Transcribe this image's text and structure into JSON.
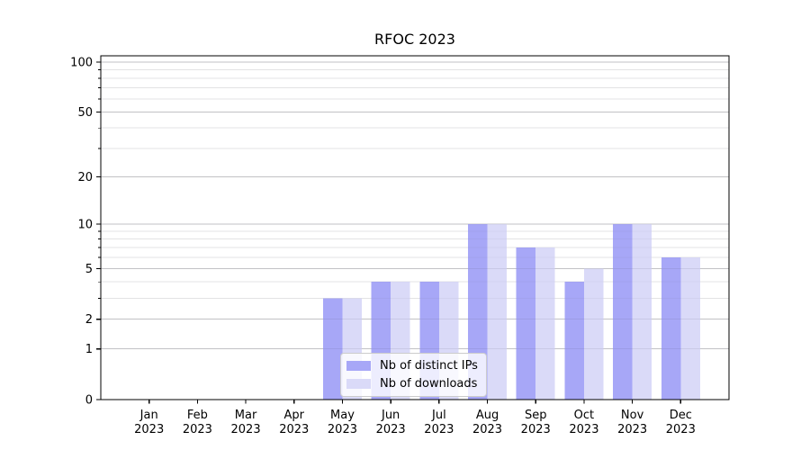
{
  "chart_data": {
    "type": "bar",
    "title": "RFOC 2023",
    "categories": [
      "Jan 2023",
      "Feb 2023",
      "Mar 2023",
      "Apr 2023",
      "May 2023",
      "Jun 2023",
      "Jul 2023",
      "Aug 2023",
      "Sep 2023",
      "Oct 2023",
      "Nov 2023",
      "Dec 2023"
    ],
    "series": [
      {
        "name": "Nb of distinct IPs",
        "color": "#a7a7f7",
        "values": [
          0,
          0,
          0,
          0,
          3,
          4,
          4,
          10,
          7,
          4,
          10,
          6
        ]
      },
      {
        "name": "Nb of downloads",
        "color": "#dadaf8",
        "values": [
          0,
          0,
          0,
          0,
          3,
          4,
          4,
          10,
          7,
          5,
          10,
          6
        ]
      }
    ],
    "xlabel": "",
    "ylabel": "",
    "yscale": "log1p",
    "ylim": [
      0,
      109
    ],
    "yticks": [
      0,
      1,
      2,
      5,
      10,
      20,
      50,
      100
    ],
    "yticks_minor": [
      3,
      4,
      6,
      7,
      8,
      9,
      30,
      40,
      60,
      70,
      80,
      90
    ],
    "grid": "on",
    "legend_position": "inside-bottom-center"
  },
  "colors": {
    "axis": "#000000",
    "grid_major": "#d2d2d2",
    "grid_minor": "#ececec",
    "text": "#000000",
    "background": "#ffffff"
  }
}
